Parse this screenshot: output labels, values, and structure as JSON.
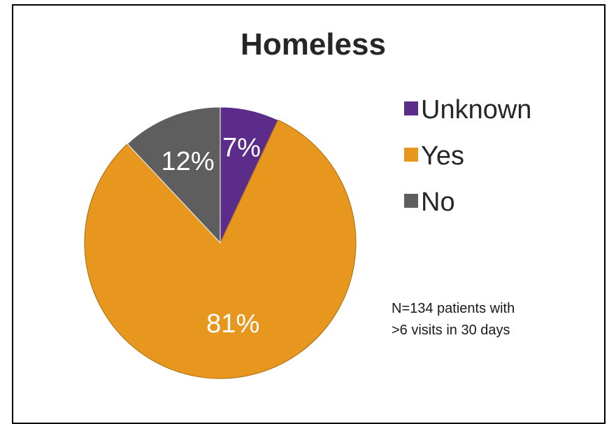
{
  "chart_data": {
    "type": "pie",
    "title": "Homeless",
    "slices": [
      {
        "label": "Unknown",
        "value": 7,
        "display": "7%",
        "color": "#5b2c8a"
      },
      {
        "label": "Yes",
        "value": 81,
        "display": "81%",
        "color": "#e8971e"
      },
      {
        "label": "No",
        "value": 12,
        "display": "12%",
        "color": "#5e5e5e"
      }
    ],
    "legend_position": "right",
    "annotation": [
      "N=134 patients with",
      ">6 visits in 30 days"
    ]
  }
}
